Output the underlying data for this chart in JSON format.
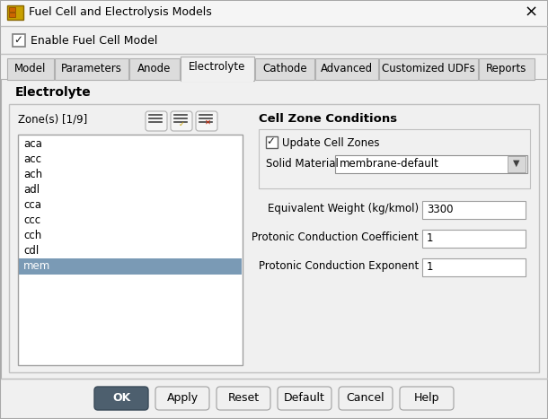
{
  "title": "Fuel Cell and Electrolysis Models",
  "bg_color": "#f0f0f0",
  "enable_text": "Enable Fuel Cell Model",
  "tabs": [
    "Model",
    "Parameters",
    "Anode",
    "Electrolyte",
    "Cathode",
    "Advanced",
    "Customized UDFs",
    "Reports"
  ],
  "active_tab_idx": 3,
  "section_title": "Electrolyte",
  "zone_label": "Zone(s) [1/9]",
  "zone_items": [
    "aca",
    "acc",
    "ach",
    "adl",
    "cca",
    "ccc",
    "cch",
    "cdl",
    "mem"
  ],
  "selected_zone": "mem",
  "cell_zone_title": "Cell Zone Conditions",
  "update_cell_zones": "Update Cell Zones",
  "solid_material_label": "Solid Material",
  "solid_material_value": "membrane-default",
  "fields": [
    {
      "label": "Equivalent Weight (kg/kmol)",
      "value": "3300"
    },
    {
      "label": "Protonic Conduction Coefficient",
      "value": "1"
    },
    {
      "label": "Protonic Conduction Exponent",
      "value": "1"
    }
  ],
  "buttons": [
    "OK",
    "Apply",
    "Reset",
    "Default",
    "Cancel",
    "Help"
  ],
  "ok_bg": "#4d5f6e",
  "ok_fg": "#ffffff",
  "list_bg": "#ffffff",
  "selected_bg": "#7a9ab5",
  "tab_widths": [
    52,
    82,
    56,
    82,
    66,
    70,
    110,
    62
  ]
}
